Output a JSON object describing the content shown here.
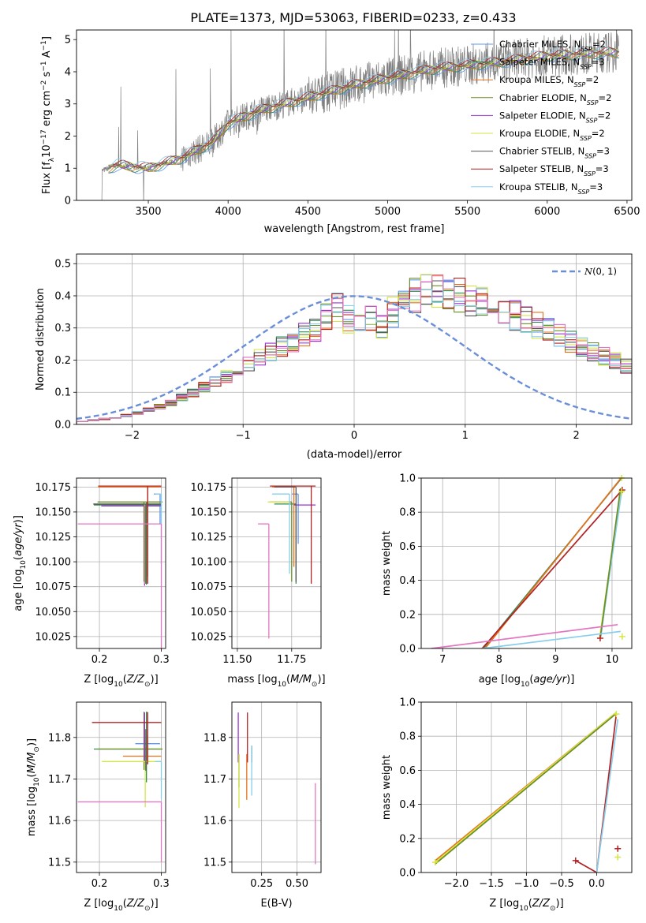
{
  "title": "PLATE=1373, MJD=53063, FIBERID=0233, z=0.433",
  "colors": {
    "Chabrier MILES": "#6495ED",
    "Salpeter MILES": "#2E8B57",
    "Kroupa MILES": "#E8701A",
    "Chabrier ELODIE": "#6B8E23",
    "Salpeter ELODIE": "#9932CC",
    "Kroupa ELODIE": "#D4E645",
    "Chabrier STELIB": "#555555",
    "Salpeter STELIB": "#B22222",
    "Kroupa STELIB": "#87CEEB",
    "extra": "#E377C2"
  },
  "chart_data": [
    {
      "id": "spectrum",
      "type": "line",
      "xlabel": "wavelength [Angstrom, rest frame]",
      "ylabel": "Flux [f_λ 10^-17 erg cm^-2 s^-1 A^-1]",
      "xlim": [
        3050,
        6530
      ],
      "ylim": [
        0,
        5.3
      ],
      "xticks": [
        3500,
        4000,
        4500,
        5000,
        5500,
        6000,
        6500
      ],
      "yticks": [
        0,
        1,
        2,
        3,
        4,
        5
      ],
      "grid": false,
      "legend_position": "top-right",
      "legend": [
        "Chabrier MILES, N_SSP=2",
        "Salpeter MILES, N_SSP=3",
        "Kroupa MILES, N_SSP=2",
        "Chabrier ELODIE, N_SSP=2",
        "Salpeter ELODIE, N_SSP=2",
        "Kroupa ELODIE, N_SSP=2",
        "Chabrier STELIB, N_SSP=3",
        "Salpeter STELIB, N_SSP=3",
        "Kroupa STELIB, N_SSP=3"
      ],
      "continuum": [
        [
          3200,
          0.9
        ],
        [
          3300,
          1.1
        ],
        [
          3500,
          1.0
        ],
        [
          3700,
          1.3
        ],
        [
          3900,
          1.8
        ],
        [
          4000,
          2.4
        ],
        [
          4200,
          2.8
        ],
        [
          4500,
          3.2
        ],
        [
          4800,
          3.6
        ],
        [
          5000,
          3.8
        ],
        [
          5300,
          4.1
        ],
        [
          5700,
          4.3
        ],
        [
          6000,
          4.5
        ],
        [
          6400,
          4.6
        ]
      ]
    },
    {
      "id": "residual_hist",
      "type": "histogram",
      "xlabel": "(data-model)/error",
      "ylabel": "Normed distribution",
      "xlim": [
        -2.5,
        2.5
      ],
      "ylim": [
        0,
        0.53
      ],
      "xticks": [
        -2,
        -1,
        0,
        1,
        2
      ],
      "yticks": [
        0.0,
        0.1,
        0.2,
        0.3,
        0.4,
        0.5
      ],
      "grid": true,
      "bin_width": 0.1,
      "bins_from": -2.5,
      "reference_curve": "N(0,1)",
      "reference_label": "𝒩(0, 1)",
      "legend_position": "top-right",
      "base_shape": [
        0.011,
        0.013,
        0.017,
        0.022,
        0.028,
        0.036,
        0.045,
        0.056,
        0.068,
        0.083,
        0.098,
        0.115,
        0.132,
        0.151,
        0.169,
        0.188,
        0.207,
        0.226,
        0.244,
        0.262,
        0.279,
        0.3,
        0.34,
        0.36,
        0.33,
        0.32,
        0.33,
        0.31,
        0.35,
        0.38,
        0.4,
        0.41,
        0.415,
        0.41,
        0.4,
        0.39,
        0.38,
        0.37,
        0.355,
        0.34,
        0.325,
        0.31,
        0.29,
        0.275,
        0.26,
        0.245,
        0.228,
        0.212,
        0.196,
        0.18,
        0.166,
        0.152,
        0.138,
        0.124,
        0.111,
        0.098,
        0.086,
        0.074,
        0.063,
        0.054,
        0.046,
        0.04,
        0.034,
        0.029,
        0.025,
        0.022,
        0.019,
        0.017,
        0.015,
        0.013,
        0.012,
        0.011,
        0.01,
        0.01,
        0.01,
        0.01,
        0.01,
        0.01,
        0.01,
        0.01
      ]
    },
    {
      "id": "age_vs_Z",
      "type": "errorbar",
      "xlabel": "Z [log10(Z/Z☉)]",
      "ylabel": "age [log10(age/yr)]",
      "xlim": [
        0.163,
        0.307
      ],
      "ylim": [
        10.013,
        10.184
      ],
      "xticks": [
        0.2,
        0.3
      ],
      "yticks": [
        10.025,
        10.05,
        10.075,
        10.1,
        10.125,
        10.15,
        10.175
      ],
      "grid": true,
      "points": [
        {
          "model": "Chabrier MILES",
          "x": 0.298,
          "xerr": [
            0.01,
            0.0
          ],
          "y": 10.168,
          "yerr": [
            0.03,
            0.0
          ]
        },
        {
          "model": "Salpeter MILES",
          "x": 0.276,
          "xerr": [
            0.085,
            0.025
          ],
          "y": 10.157,
          "yerr": [
            0.08,
            0.003
          ]
        },
        {
          "model": "Kroupa MILES",
          "x": 0.278,
          "xerr": [
            0.08,
            0.022
          ],
          "y": 10.175,
          "yerr": [
            0.09,
            0.0
          ]
        },
        {
          "model": "Chabrier ELODIE",
          "x": 0.272,
          "xerr": [
            0.075,
            0.03
          ],
          "y": 10.16,
          "yerr": [
            0.08,
            0.0
          ]
        },
        {
          "model": "Salpeter ELODIE",
          "x": 0.273,
          "xerr": [
            0.07,
            0.027
          ],
          "y": 10.156,
          "yerr": [
            0.08,
            0.0
          ]
        },
        {
          "model": "Kroupa ELODIE",
          "x": 0.274,
          "xerr": [
            0.07,
            0.026
          ],
          "y": 10.158,
          "yerr": [
            0.08,
            0.0
          ]
        },
        {
          "model": "Chabrier STELIB",
          "x": 0.275,
          "xerr": [
            0.085,
            0.025
          ],
          "y": 10.158,
          "yerr": [
            0.08,
            0.0
          ]
        },
        {
          "model": "Salpeter STELIB",
          "x": 0.278,
          "xerr": [
            0.08,
            0.022
          ],
          "y": 10.176,
          "yerr": [
            0.098,
            0.0
          ]
        },
        {
          "model": "Kroupa STELIB",
          "x": 0.3,
          "xerr": [
            0.01,
            0.0
          ],
          "y": 10.168,
          "yerr": [
            0.07,
            0.0
          ]
        },
        {
          "model": "extra",
          "x": 0.3,
          "xerr": [
            0.135,
            0.0
          ],
          "y": 10.138,
          "yerr": [
            0.125,
            0.0
          ]
        }
      ]
    },
    {
      "id": "age_vs_mass",
      "type": "errorbar",
      "xlabel": "mass [log10(M/M☉)]",
      "ylabel": "",
      "xlim": [
        11.475,
        11.885
      ],
      "ylim": [
        10.013,
        10.184
      ],
      "xticks": [
        11.5,
        11.75
      ],
      "yticks": [
        10.025,
        10.05,
        10.075,
        10.1,
        10.125,
        10.15,
        10.175
      ],
      "grid": true,
      "points": [
        {
          "model": "Chabrier MILES",
          "x": 11.78,
          "xerr": [
            0.03,
            0.0
          ],
          "y": 10.168,
          "yerr": [
            0.05,
            0.0
          ]
        },
        {
          "model": "Salpeter MILES",
          "x": 11.77,
          "xerr": [
            0.1,
            0.0
          ],
          "y": 10.158,
          "yerr": [
            0.08,
            0.0
          ]
        },
        {
          "model": "Kroupa MILES",
          "x": 11.76,
          "xerr": [
            0.1,
            0.0
          ],
          "y": 10.175,
          "yerr": [
            0.08,
            0.0
          ]
        },
        {
          "model": "Chabrier ELODIE",
          "x": 11.75,
          "xerr": [
            0.1,
            0.0
          ],
          "y": 10.16,
          "yerr": [
            0.08,
            0.0
          ]
        },
        {
          "model": "Salpeter ELODIE",
          "x": 11.86,
          "xerr": [
            0.1,
            0.0
          ],
          "y": 10.157,
          "yerr": [
            0.0,
            0.0
          ]
        },
        {
          "model": "Kroupa ELODIE",
          "x": 11.74,
          "xerr": [
            0.1,
            0.0
          ],
          "y": 10.16,
          "yerr": [
            0.0,
            0.0
          ]
        },
        {
          "model": "Chabrier STELIB",
          "x": 11.77,
          "xerr": [
            0.1,
            0.0
          ],
          "y": 10.175,
          "yerr": [
            0.095,
            0.0
          ]
        },
        {
          "model": "Salpeter STELIB",
          "x": 11.84,
          "xerr": [
            0.19,
            0.02
          ],
          "y": 10.176,
          "yerr": [
            0.098,
            0.0
          ]
        },
        {
          "model": "Kroupa STELIB",
          "x": 11.74,
          "xerr": [
            0.08,
            0.0
          ],
          "y": 10.168,
          "yerr": [
            0.08,
            0.0
          ]
        },
        {
          "model": "extra",
          "x": 11.645,
          "xerr": [
            0.05,
            0.0
          ],
          "y": 10.138,
          "yerr": [
            0.115,
            0.0
          ]
        }
      ]
    },
    {
      "id": "weight_vs_age",
      "type": "line",
      "xlabel": "age log10(age/yr)",
      "ylabel": "mass weight",
      "xlim": [
        6.62,
        10.35
      ],
      "ylim": [
        0,
        1
      ],
      "xticks": [
        7,
        8,
        9,
        10
      ],
      "yticks": [
        0.0,
        0.2,
        0.4,
        0.6,
        0.8,
        1.0
      ],
      "grid": true,
      "series": [
        {
          "model": "Salpeter MILES",
          "points": [
            [
              7.72,
              0.0
            ],
            [
              10.17,
              1.0
            ]
          ]
        },
        {
          "model": "Kroupa MILES",
          "points": [
            [
              7.75,
              0.0
            ],
            [
              10.16,
              1.0
            ]
          ]
        },
        {
          "model": "Salpeter STELIB",
          "points": [
            [
              7.7,
              0.0
            ],
            [
              10.18,
              0.93
            ]
          ]
        },
        {
          "model": "Chabrier MILES",
          "points": [
            [
              9.8,
              0.07
            ],
            [
              10.16,
              0.93
            ]
          ]
        },
        {
          "model": "Kroupa ELODIE",
          "points": [
            [
              9.78,
              0.06
            ],
            [
              10.16,
              0.94
            ]
          ]
        },
        {
          "model": "Kroupa STELIB",
          "points": [
            [
              9.8,
              0.08
            ],
            [
              10.17,
              0.92
            ]
          ]
        },
        {
          "model": "Chabrier ELODIE",
          "points": [
            [
              9.79,
              0.06
            ],
            [
              10.15,
              0.94
            ]
          ]
        },
        {
          "model": "extra",
          "points": [
            [
              6.8,
              0.0
            ],
            [
              10.1,
              0.14
            ]
          ]
        },
        {
          "model": "Kroupa STELIB",
          "points": [
            [
              7.7,
              0.0
            ],
            [
              10.15,
              0.1
            ]
          ]
        }
      ],
      "markers": [
        [
          10.17,
          1.0
        ],
        [
          10.18,
          0.93
        ],
        [
          10.18,
          0.07
        ],
        [
          9.79,
          0.06
        ],
        [
          10.17,
          0.92
        ]
      ]
    },
    {
      "id": "mass_vs_Z",
      "type": "errorbar",
      "xlabel": "Z [log10(Z/Z☉)]",
      "ylabel": "mass [log10(M/M☉)]",
      "xlim": [
        0.163,
        0.307
      ],
      "ylim": [
        11.475,
        11.885
      ],
      "xticks": [
        0.2,
        0.3
      ],
      "yticks": [
        11.5,
        11.6,
        11.7,
        11.8
      ],
      "grid": true,
      "points": [
        {
          "model": "Chabrier MILES",
          "x": 0.298,
          "xerr": [
            0.04,
            0.0
          ],
          "y": 11.785,
          "yerr": [
            0.0,
            0.0
          ]
        },
        {
          "model": "Salpeter MILES",
          "x": 0.276,
          "xerr": [
            0.085,
            0.025
          ],
          "y": 11.772,
          "yerr": [
            0.08,
            0.09
          ]
        },
        {
          "model": "Kroupa MILES",
          "x": 0.278,
          "xerr": [
            0.04,
            0.022
          ],
          "y": 11.755,
          "yerr": [
            0.02,
            0.05
          ]
        },
        {
          "model": "Chabrier ELODIE",
          "x": 0.272,
          "xerr": [
            0.075,
            0.03
          ],
          "y": 11.772,
          "yerr": [
            0.05,
            0.09
          ]
        },
        {
          "model": "Salpeter ELODIE",
          "x": 0.273,
          "xerr": [
            0.0,
            0.0
          ],
          "y": 11.8,
          "yerr": [
            0.06,
            0.06
          ]
        },
        {
          "model": "Kroupa ELODIE",
          "x": 0.274,
          "xerr": [
            0.07,
            0.026
          ],
          "y": 11.742,
          "yerr": [
            0.11,
            0.0
          ]
        },
        {
          "model": "Chabrier STELIB",
          "x": 0.275,
          "xerr": [
            0.0,
            0.0
          ],
          "y": 11.77,
          "yerr": [
            0.05,
            0.05
          ]
        },
        {
          "model": "Salpeter STELIB",
          "x": 0.278,
          "xerr": [
            0.09,
            0.022
          ],
          "y": 11.836,
          "yerr": [
            0.1,
            0.025
          ]
        },
        {
          "model": "Kroupa STELIB",
          "x": 0.3,
          "xerr": [
            0.01,
            0.0
          ],
          "y": 11.742,
          "yerr": [
            0.09,
            0.0
          ]
        },
        {
          "model": "extra",
          "x": 0.3,
          "xerr": [
            0.135,
            0.0
          ],
          "y": 11.645,
          "yerr": [
            0.145,
            0.0
          ]
        }
      ]
    },
    {
      "id": "mass_vs_ebv",
      "type": "errorbar",
      "xlabel": "E(B-V)",
      "ylabel": "",
      "xlim": [
        0.04,
        0.67
      ],
      "ylim": [
        11.475,
        11.885
      ],
      "xticks": [
        0.25,
        0.5
      ],
      "yticks": [
        11.5,
        11.6,
        11.7,
        11.8
      ],
      "grid": true,
      "points": [
        {
          "model": "Salpeter ELODIE",
          "x": 0.085,
          "y": 11.8,
          "yerr": [
            0.06,
            0.06
          ]
        },
        {
          "model": "Chabrier ELODIE",
          "x": 0.09,
          "y": 11.72,
          "yerr": [
            0.04,
            0.04
          ]
        },
        {
          "model": "Kroupa ELODIE",
          "x": 0.09,
          "y": 11.7,
          "yerr": [
            0.07,
            0.06
          ]
        },
        {
          "model": "Kroupa MILES",
          "x": 0.145,
          "y": 11.705,
          "yerr": [
            0.055,
            0.055
          ]
        },
        {
          "model": "Salpeter STELIB",
          "x": 0.15,
          "y": 11.8,
          "yerr": [
            0.06,
            0.06
          ]
        },
        {
          "model": "Chabrier STELIB",
          "x": 0.18,
          "y": 11.76,
          "yerr": [
            0.02,
            0.02
          ]
        },
        {
          "model": "Kroupa STELIB",
          "x": 0.18,
          "y": 11.72,
          "yerr": [
            0.06,
            0.06
          ]
        },
        {
          "model": "extra",
          "x": 0.63,
          "y": 11.595,
          "yerr": [
            0.1,
            0.095
          ]
        }
      ]
    },
    {
      "id": "weight_vs_Z",
      "type": "line",
      "xlabel": "Z [log10(Z/Z☉)]",
      "ylabel": "mass weight",
      "xlim": [
        -2.5,
        0.5
      ],
      "ylim": [
        0,
        1
      ],
      "xticks": [
        -2.0,
        -1.5,
        -1.0,
        -0.5,
        0.0
      ],
      "yticks": [
        0.0,
        0.2,
        0.4,
        0.6,
        0.8,
        1.0
      ],
      "grid": true,
      "series": [
        {
          "model": "Kroupa MILES",
          "points": [
            [
              -2.3,
              0.07
            ],
            [
              0.28,
              0.94
            ]
          ]
        },
        {
          "model": "Kroupa ELODIE",
          "points": [
            [
              -2.3,
              0.06
            ],
            [
              0.28,
              0.94
            ]
          ]
        },
        {
          "model": "Chabrier ELODIE",
          "points": [
            [
              -2.3,
              0.05
            ],
            [
              0.27,
              0.93
            ]
          ]
        },
        {
          "model": "Salpeter STELIB",
          "points": [
            [
              -0.3,
              0.07
            ],
            [
              0.0,
              0.0
            ]
          ]
        },
        {
          "model": "Salpeter STELIB",
          "points": [
            [
              0.0,
              0.0
            ],
            [
              0.28,
              0.93
            ]
          ]
        },
        {
          "model": "Kroupa STELIB",
          "points": [
            [
              0.0,
              0.0
            ],
            [
              0.3,
              0.9
            ]
          ]
        }
      ],
      "markers": [
        [
          -2.3,
          0.06
        ],
        [
          -0.3,
          0.07
        ],
        [
          0.28,
          0.93
        ],
        [
          0.3,
          0.14
        ],
        [
          0.3,
          0.09
        ]
      ]
    }
  ]
}
